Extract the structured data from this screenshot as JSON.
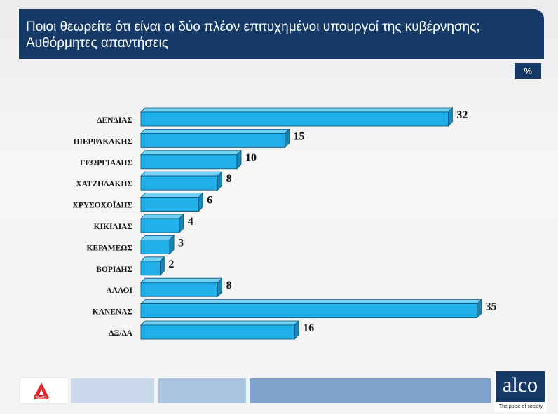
{
  "header": {
    "title_line1": "Ποιοι θεωρείτε ότι είναι οι δύο πλέον επιτυχημένοι υπουργοί της κυβέρνησης;",
    "title_line2": "Αυθόρμητες απαντήσεις",
    "unit": "%"
  },
  "chart_data": {
    "type": "bar",
    "orientation": "horizontal",
    "title": "Ποιοι θεωρείτε ότι είναι οι δύο πλέον επιτυχημένοι υπουργοί της κυβέρνησης; Αυθόρμητες απαντήσεις",
    "unit": "%",
    "categories": [
      "ΔΕΝΔΙΑΣ",
      "ΠΙΕΡΡΑΚΑΚΗΣ",
      "ΓΕΩΡΓΙΑΔΗΣ",
      "ΧΑΤΖΗΔΑΚΗΣ",
      "ΧΡΥΣΟΧΟΪΔΗΣ",
      "ΚΙΚΙΛΙΑΣ",
      "ΚΕΡΑΜΕΩΣ",
      "ΒΟΡΙΔΗΣ",
      "ΑΛΛΟΙ",
      "ΚΑΝΕΝΑΣ",
      "ΔΞ/ΔΑ"
    ],
    "values": [
      32,
      15,
      10,
      8,
      6,
      4,
      3,
      2,
      8,
      35,
      16
    ],
    "xlim": [
      0,
      35
    ],
    "grid": false,
    "legend": "none",
    "colors": {
      "bar_face": "#1fb0ea",
      "bar_side": "#1488bd",
      "bar_top": "#6fd3f7"
    }
  },
  "footer": {
    "brand_name": "alco",
    "brand_tagline": "The pulse of society",
    "news_logo_text": "NEWS",
    "colors": {
      "strip_light": "#c9d8eb",
      "strip_mid": "#a9c3e0",
      "strip_dark": "#7ea2cc",
      "brand": "#163a68"
    }
  }
}
